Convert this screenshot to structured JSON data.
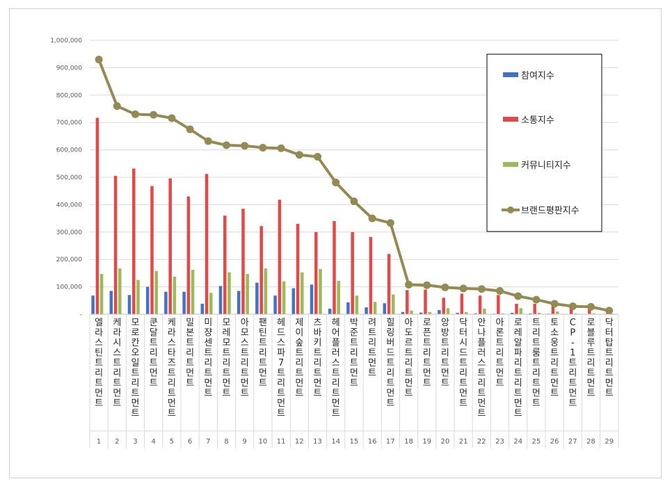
{
  "chart_data": {
    "type": "bar",
    "title": "",
    "xlabel": "",
    "ylabel": "",
    "ylim": [
      0,
      1000000
    ],
    "yticks": [
      {
        "value": 0,
        "label": "-"
      },
      {
        "value": 100000,
        "label": "100,000"
      },
      {
        "value": 200000,
        "label": "200,000"
      },
      {
        "value": 300000,
        "label": "300,000"
      },
      {
        "value": 400000,
        "label": "400,000"
      },
      {
        "value": 500000,
        "label": "500,000"
      },
      {
        "value": 600000,
        "label": "600,000"
      },
      {
        "value": 700000,
        "label": "700,000"
      },
      {
        "value": 800000,
        "label": "800,000"
      },
      {
        "value": 900000,
        "label": "900,000"
      },
      {
        "value": 1000000,
        "label": "1,000,000"
      }
    ],
    "grid": true,
    "legend_position": "top-right",
    "numbers": [
      "1",
      "2",
      "3",
      "4",
      "5",
      "6",
      "7",
      "8",
      "9",
      "10",
      "11",
      "12",
      "13",
      "14",
      "15",
      "16",
      "17",
      "18",
      "19",
      "20",
      "21",
      "22",
      "23",
      "24",
      "25",
      "26",
      "27",
      "28",
      "29"
    ],
    "categories": [
      "엘라스틴 트리트먼트",
      "케라시스 트리트먼트",
      "모로칸오일 트리트먼트",
      "쿤달 트리트먼트",
      "케라스타즈 트리트먼트",
      "밀본 트리트먼트",
      "미쟝센 트리트먼트",
      "모레모 트리트먼트",
      "아모스 트리트먼트",
      "팬틴 트리트먼트",
      "헤드스파7 트리트먼트",
      "제이숲 트리트먼트",
      "츠바키 트리트먼트",
      "헤어플러스 트리트먼트",
      "박준 트리트먼트",
      "려 트리트먼트",
      "힐링버드 트리트먼트",
      "아도르 트리트먼트",
      "로픈 트리트먼트",
      "앙방 트리트먼트",
      "닥터시드 트리트먼트",
      "안나플러스 트리트먼트",
      "아론 트리트먼트",
      "로레알파리 트리트먼트",
      "트리트룸 트리트먼트",
      "토소웅 트리트먼트",
      "CP-1 트리트먼트",
      "로블루 트리트먼트",
      "닥터탑 트리트먼트"
    ],
    "series": [
      {
        "name": "참여지수",
        "kind": "bar",
        "color": "#4472c4",
        "values": [
          68000,
          85000,
          70000,
          100000,
          82000,
          82000,
          38000,
          103000,
          85000,
          115000,
          68000,
          95000,
          108000,
          20000,
          43000,
          25000,
          40000,
          8000,
          6000,
          15000,
          5000,
          3000,
          2000,
          5000,
          3000,
          2000,
          1000,
          1000,
          500
        ]
      },
      {
        "name": "소통지수",
        "kind": "bar",
        "color": "#e34948",
        "values": [
          717000,
          505000,
          532000,
          468000,
          496000,
          430000,
          512000,
          360000,
          385000,
          322000,
          418000,
          330000,
          300000,
          340000,
          300000,
          282000,
          220000,
          88000,
          90000,
          60000,
          75000,
          68000,
          70000,
          38000,
          38000,
          28000,
          22000,
          20000,
          8000
        ]
      },
      {
        "name": "커뮤니티지수",
        "kind": "bar",
        "color": "#9bbb59",
        "values": [
          147000,
          167000,
          125000,
          158000,
          137000,
          162000,
          78000,
          153000,
          147000,
          167000,
          120000,
          153000,
          165000,
          122000,
          68000,
          45000,
          72000,
          13000,
          8000,
          22000,
          8000,
          20000,
          3000,
          22000,
          5000,
          10000,
          3000,
          3000,
          2000
        ]
      },
      {
        "name": "브랜드평판지수",
        "kind": "line",
        "color": "#948a54",
        "values": [
          930000,
          760000,
          730000,
          728000,
          716000,
          675000,
          632000,
          617000,
          615000,
          608000,
          606000,
          582000,
          575000,
          481000,
          412000,
          350000,
          333000,
          108000,
          106000,
          98000,
          94000,
          92000,
          85000,
          66000,
          53000,
          38000,
          29000,
          27000,
          13000
        ]
      }
    ]
  }
}
